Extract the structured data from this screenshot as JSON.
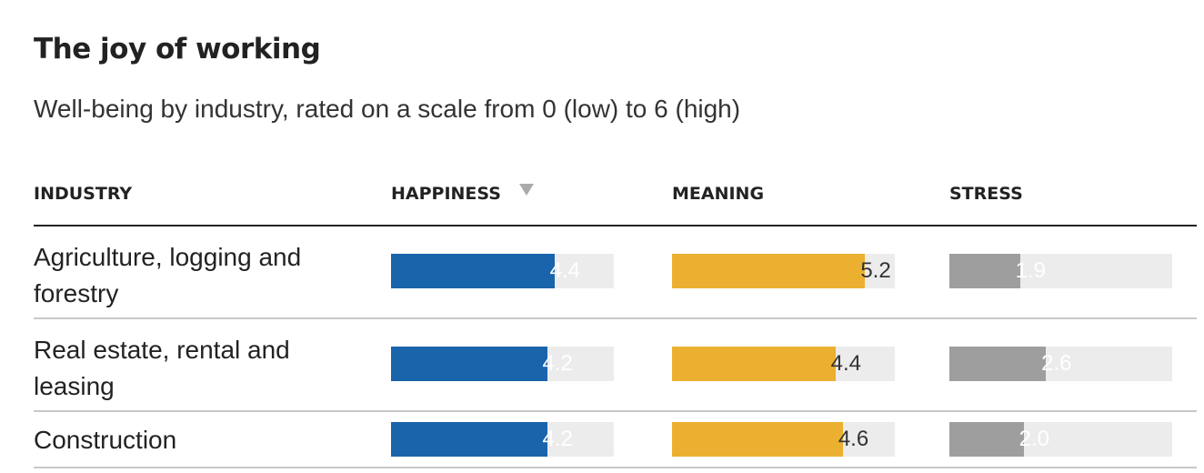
{
  "title": "The joy of working",
  "subtitle": "Well-being by industry, rated on a scale from 0 (low) to 6 (high)",
  "columns": {
    "industry": "INDUSTRY",
    "happiness": "HAPPINESS",
    "meaning": "MEANING",
    "stress": "STRESS"
  },
  "sort": {
    "column": "happiness",
    "direction": "descending",
    "icon": "sort-descending-icon"
  },
  "colors": {
    "happiness": "#1a64ab",
    "meaning": "#ecb030",
    "stress": "#9e9e9e",
    "track": "#ececec",
    "label_on_happiness": "#ffffff",
    "label_on_meaning": "#333333",
    "label_on_stress": "#ffffff"
  },
  "chart_data": {
    "type": "bar",
    "orientation": "horizontal",
    "title": "The joy of working",
    "subtitle": "Well-being by industry, rated on a scale from 0 (low) to 6 (high)",
    "categories": [
      "Agriculture, logging and forestry",
      "Real estate, rental and leasing",
      "Construction"
    ],
    "xlim": [
      0,
      6
    ],
    "series": [
      {
        "name": "HAPPINESS",
        "values": [
          4.4,
          4.2,
          4.2
        ],
        "labels": [
          "4.4",
          "4.2",
          "4.2"
        ]
      },
      {
        "name": "MEANING",
        "values": [
          5.2,
          4.4,
          4.6
        ],
        "labels": [
          "5.2",
          "4.4",
          "4.6"
        ]
      },
      {
        "name": "STRESS",
        "values": [
          1.9,
          2.6,
          2.0
        ],
        "labels": [
          "1.9",
          "2.6",
          "2.0"
        ]
      }
    ]
  }
}
